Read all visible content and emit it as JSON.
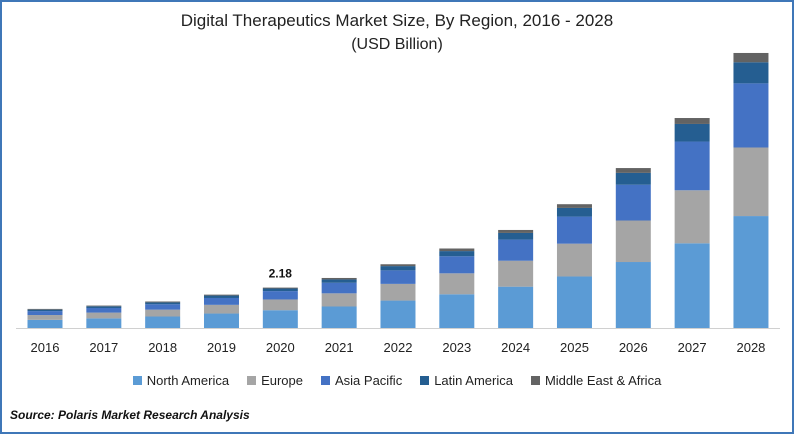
{
  "chart_data": {
    "type": "bar",
    "stacked": true,
    "title": "Digital Therapeutics Market Size, By Region, 2016 - 2028",
    "subtitle": "(USD Billion)",
    "xlabel": "",
    "ylabel": "",
    "categories": [
      "2016",
      "2017",
      "2018",
      "2019",
      "2020",
      "2021",
      "2022",
      "2023",
      "2024",
      "2025",
      "2026",
      "2027",
      "2028"
    ],
    "ylim": [
      0,
      15
    ],
    "grid": false,
    "legend_position": "bottom",
    "series": [
      {
        "name": "North America",
        "color": "#5b9bd5",
        "values": [
          0.44,
          0.52,
          0.62,
          0.78,
          0.96,
          1.16,
          1.48,
          1.82,
          2.23,
          2.78,
          3.56,
          4.57,
          6.04
        ]
      },
      {
        "name": "Europe",
        "color": "#a5a5a5",
        "values": [
          0.26,
          0.31,
          0.37,
          0.47,
          0.58,
          0.71,
          0.9,
          1.13,
          1.4,
          1.77,
          2.24,
          2.86,
          3.7
        ]
      },
      {
        "name": "Asia Pacific",
        "color": "#4472c4",
        "values": [
          0.21,
          0.25,
          0.29,
          0.37,
          0.45,
          0.57,
          0.73,
          0.92,
          1.14,
          1.46,
          1.93,
          2.63,
          3.46
        ]
      },
      {
        "name": "Latin America",
        "color": "#255e91",
        "values": [
          0.08,
          0.09,
          0.1,
          0.13,
          0.14,
          0.18,
          0.23,
          0.28,
          0.36,
          0.47,
          0.64,
          0.95,
          1.14
        ]
      },
      {
        "name": "Middle East & Africa",
        "color": "#636363",
        "values": [
          0.04,
          0.04,
          0.05,
          0.05,
          0.05,
          0.08,
          0.1,
          0.14,
          0.16,
          0.2,
          0.26,
          0.32,
          0.5
        ]
      }
    ],
    "annotations": [
      {
        "category": "2020",
        "text": "2.18"
      }
    ]
  },
  "source": "Source: Polaris  Market Research Analysis"
}
